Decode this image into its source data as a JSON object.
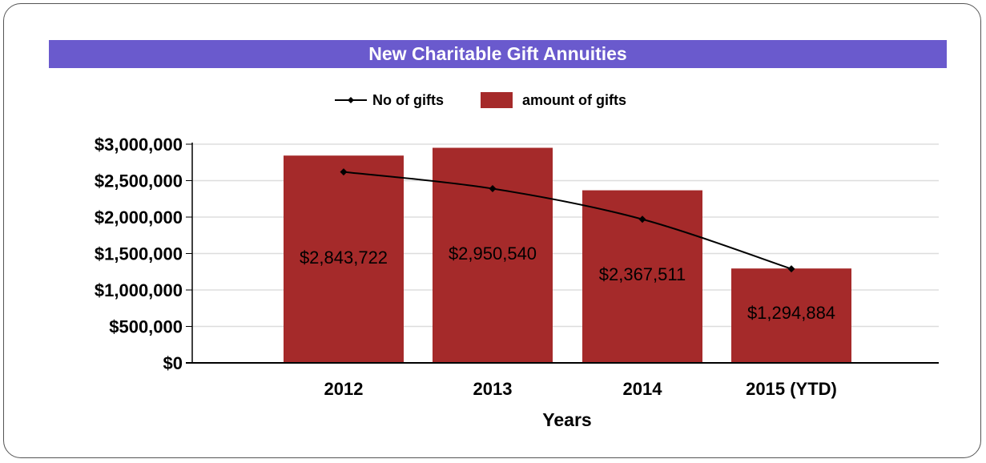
{
  "chart_data": {
    "type": "bar",
    "title": "New Charitable Gift Annuities",
    "xlabel": "Years",
    "ylabel": "",
    "categories": [
      "2012",
      "2013",
      "2014",
      "2015 (YTD)"
    ],
    "series": [
      {
        "name": "amount of gifts",
        "type": "bar",
        "values": [
          2843722,
          2950540,
          2367511,
          1294884
        ],
        "labels": [
          "$2,843,722",
          "$2,950,540",
          "$2,367,511",
          "$1,294,884"
        ],
        "color": "#a52a2a"
      },
      {
        "name": "No of gifts",
        "type": "line",
        "values": [
          2620000,
          2390000,
          1970000,
          1290000
        ],
        "color": "#000000"
      }
    ],
    "ylim": [
      0,
      3000000
    ],
    "yticks": [
      0,
      500000,
      1000000,
      1500000,
      2000000,
      2500000,
      3000000
    ],
    "ytick_labels": [
      "$0",
      "$500,000",
      "$1,000,000",
      "$1,500,000",
      "$2,000,000",
      "$2,500,000",
      "$3,000,000"
    ],
    "grid": true,
    "legend": "top-center",
    "colors": {
      "title_bar": "#6a5acd",
      "bar": "#a52a2a",
      "line": "#000000",
      "grid": "#dddddd"
    }
  }
}
